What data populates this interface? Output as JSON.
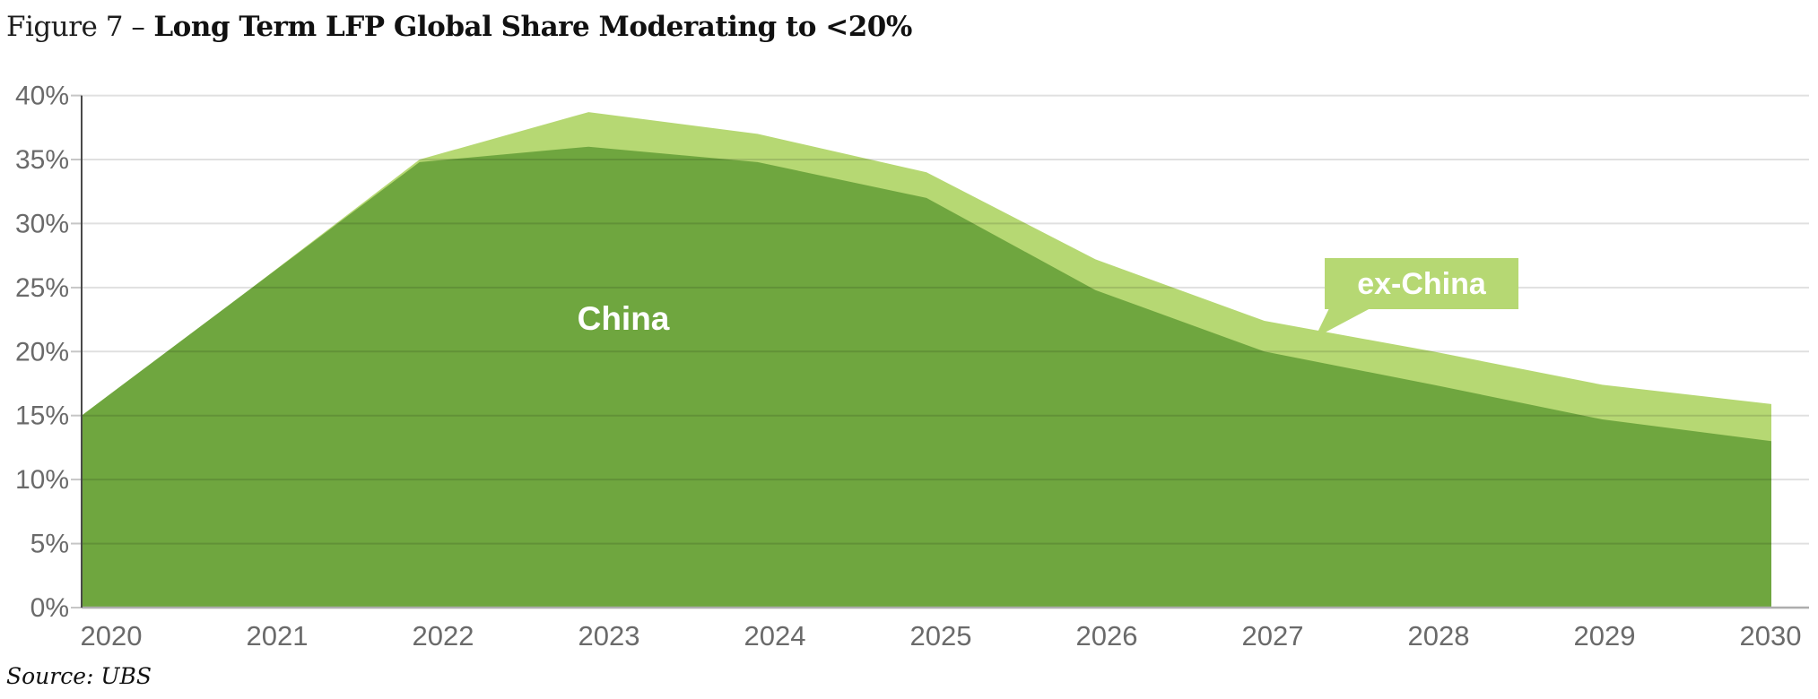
{
  "figure": {
    "label": "Figure 7 –",
    "title": "Long Term LFP Global Share Moderating to <20%",
    "source": "Source: UBS"
  },
  "chart_data": {
    "type": "area",
    "stacked": true,
    "title": "Long Term LFP Global Share Moderating to <20%",
    "x": [
      2020,
      2021,
      2022,
      2023,
      2024,
      2025,
      2026,
      2027,
      2028,
      2029,
      2030
    ],
    "series": [
      {
        "name": "China",
        "color": "#6fa63f",
        "values": [
          15.0,
          24.9,
          34.8,
          36.0,
          34.8,
          32.0,
          24.8,
          20.0,
          17.4,
          14.7,
          13.0
        ]
      },
      {
        "name": "ex-China",
        "color": "#b6d873",
        "values": [
          0.0,
          0.0,
          0.2,
          2.7,
          2.2,
          2.0,
          2.4,
          2.4,
          2.6,
          2.7,
          2.9
        ]
      }
    ],
    "ylim": [
      0,
      40
    ],
    "ytick_step": 5,
    "ytick_format": "percent",
    "xlabel": "",
    "ylabel": "",
    "grid": "horizontal",
    "legend_position": "inline-annotations",
    "annotations": [
      {
        "text": "China",
        "style": "text-on-area",
        "color": "#ffffff"
      },
      {
        "text": "ex-China",
        "style": "callout-box",
        "color": "#ffffff",
        "box_color": "#b6d873"
      }
    ]
  },
  "colors": {
    "china_area": "#6fa63f",
    "ex_china_area": "#b6d873",
    "axis_text": "#6a6a6a",
    "grid_line": "rgba(0,0,0,0.12)",
    "baseline": "#adadad",
    "axis_line": "#4a4a4a",
    "tick": "#c6c6c6",
    "annotation_text": "#ffffff"
  }
}
